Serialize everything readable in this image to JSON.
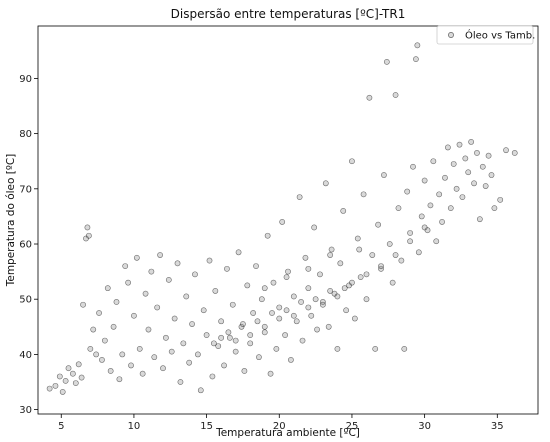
{
  "chart_data": {
    "type": "scatter",
    "title": "Dispersão entre temperaturas [ºC]-TR1",
    "xlabel": "Temperatura ambiente [ºC]",
    "ylabel": "Temperatura do óleo [ºC]",
    "xlim": [
      3.4,
      37.8
    ],
    "ylim": [
      29.2,
      99.5
    ],
    "xticks": [
      5,
      10,
      15,
      20,
      25,
      30,
      35
    ],
    "yticks": [
      30,
      40,
      50,
      60,
      70,
      80,
      90
    ],
    "grid": false,
    "legend": {
      "position": "top-right",
      "entries": [
        "Óleo vs Tamb."
      ]
    },
    "marker": {
      "shape": "circle",
      "fill": "#808080",
      "edge": "#000000",
      "alpha": 0.3
    },
    "series": [
      {
        "points": [
          [
            4.2,
            33.8
          ],
          [
            4.6,
            34.3
          ],
          [
            4.9,
            36.0
          ],
          [
            5.1,
            33.2
          ],
          [
            5.3,
            35.2
          ],
          [
            5.5,
            37.5
          ],
          [
            5.8,
            36.5
          ],
          [
            6.0,
            34.8
          ],
          [
            6.2,
            38.2
          ],
          [
            6.4,
            35.8
          ],
          [
            6.5,
            49.0
          ],
          [
            6.7,
            61.0
          ],
          [
            6.8,
            63.0
          ],
          [
            6.9,
            61.5
          ],
          [
            7.0,
            41.0
          ],
          [
            7.2,
            44.5
          ],
          [
            7.4,
            40.0
          ],
          [
            7.6,
            47.5
          ],
          [
            7.8,
            39.0
          ],
          [
            8.0,
            42.5
          ],
          [
            8.2,
            52.0
          ],
          [
            8.4,
            37.0
          ],
          [
            8.6,
            45.0
          ],
          [
            8.8,
            49.5
          ],
          [
            9.0,
            35.5
          ],
          [
            9.2,
            40.0
          ],
          [
            9.4,
            56.0
          ],
          [
            9.6,
            53.0
          ],
          [
            9.8,
            38.0
          ],
          [
            10.0,
            47.0
          ],
          [
            10.2,
            57.5
          ],
          [
            10.4,
            41.0
          ],
          [
            10.6,
            36.5
          ],
          [
            10.8,
            51.0
          ],
          [
            11.0,
            44.5
          ],
          [
            11.2,
            55.0
          ],
          [
            11.4,
            39.5
          ],
          [
            11.6,
            48.5
          ],
          [
            11.8,
            58.0
          ],
          [
            12.0,
            37.5
          ],
          [
            12.2,
            43.0
          ],
          [
            12.4,
            53.5
          ],
          [
            12.6,
            40.5
          ],
          [
            12.8,
            46.5
          ],
          [
            13.0,
            56.5
          ],
          [
            13.2,
            35.0
          ],
          [
            13.4,
            42.0
          ],
          [
            13.6,
            50.5
          ],
          [
            13.8,
            38.5
          ],
          [
            14.0,
            45.5
          ],
          [
            14.2,
            54.5
          ],
          [
            14.4,
            40.0
          ],
          [
            14.6,
            33.5
          ],
          [
            14.8,
            48.0
          ],
          [
            15.0,
            43.5
          ],
          [
            15.2,
            57.0
          ],
          [
            15.4,
            36.0
          ],
          [
            15.6,
            51.5
          ],
          [
            15.8,
            41.5
          ],
          [
            16.0,
            46.0
          ],
          [
            16.2,
            38.0
          ],
          [
            16.4,
            55.5
          ],
          [
            16.6,
            43.0
          ],
          [
            16.8,
            49.0
          ],
          [
            17.0,
            40.5
          ],
          [
            17.2,
            58.5
          ],
          [
            17.4,
            45.0
          ],
          [
            17.6,
            37.0
          ],
          [
            17.8,
            52.5
          ],
          [
            18.0,
            42.0
          ],
          [
            18.2,
            47.5
          ],
          [
            18.4,
            56.0
          ],
          [
            18.6,
            39.5
          ],
          [
            18.8,
            50.0
          ],
          [
            19.0,
            44.0
          ],
          [
            19.2,
            61.5
          ],
          [
            19.4,
            36.5
          ],
          [
            19.6,
            53.0
          ],
          [
            19.8,
            41.0
          ],
          [
            20.0,
            48.5
          ],
          [
            20.2,
            64.0
          ],
          [
            20.4,
            43.5
          ],
          [
            20.6,
            55.0
          ],
          [
            20.8,
            39.0
          ],
          [
            21.0,
            50.5
          ],
          [
            21.2,
            46.0
          ],
          [
            21.4,
            68.5
          ],
          [
            21.6,
            42.5
          ],
          [
            21.8,
            57.5
          ],
          [
            22.0,
            52.0
          ],
          [
            22.2,
            47.0
          ],
          [
            22.4,
            63.0
          ],
          [
            22.6,
            44.5
          ],
          [
            22.8,
            54.5
          ],
          [
            23.0,
            49.5
          ],
          [
            23.2,
            71.0
          ],
          [
            23.4,
            45.0
          ],
          [
            23.6,
            59.0
          ],
          [
            23.8,
            51.0
          ],
          [
            24.0,
            41.0
          ],
          [
            24.2,
            56.5
          ],
          [
            24.4,
            66.0
          ],
          [
            24.6,
            48.0
          ],
          [
            24.8,
            52.5
          ],
          [
            25.0,
            75.0
          ],
          [
            25.2,
            46.5
          ],
          [
            25.4,
            61.0
          ],
          [
            25.6,
            54.0
          ],
          [
            25.8,
            69.0
          ],
          [
            26.0,
            50.0
          ],
          [
            26.2,
            86.5
          ],
          [
            26.4,
            58.0
          ],
          [
            26.6,
            41.0
          ],
          [
            26.8,
            63.5
          ],
          [
            27.0,
            55.5
          ],
          [
            27.2,
            72.5
          ],
          [
            27.4,
            93.0
          ],
          [
            27.6,
            60.0
          ],
          [
            27.8,
            53.0
          ],
          [
            28.0,
            87.0
          ],
          [
            28.2,
            66.5
          ],
          [
            28.4,
            57.0
          ],
          [
            28.6,
            41.0
          ],
          [
            28.8,
            69.5
          ],
          [
            29.0,
            62.0
          ],
          [
            29.2,
            74.0
          ],
          [
            29.4,
            93.5
          ],
          [
            29.5,
            96.0
          ],
          [
            29.6,
            58.5
          ],
          [
            29.8,
            65.0
          ],
          [
            30.0,
            71.5
          ],
          [
            30.2,
            62.5
          ],
          [
            30.4,
            67.0
          ],
          [
            30.6,
            75.0
          ],
          [
            30.8,
            60.5
          ],
          [
            31.0,
            69.0
          ],
          [
            31.2,
            64.0
          ],
          [
            31.4,
            72.0
          ],
          [
            31.6,
            77.5
          ],
          [
            31.8,
            66.5
          ],
          [
            32.0,
            74.5
          ],
          [
            32.2,
            70.0
          ],
          [
            32.4,
            78.0
          ],
          [
            32.6,
            68.5
          ],
          [
            32.8,
            75.5
          ],
          [
            33.0,
            73.0
          ],
          [
            33.2,
            78.5
          ],
          [
            33.4,
            71.0
          ],
          [
            33.6,
            76.5
          ],
          [
            33.8,
            64.5
          ],
          [
            34.0,
            74.0
          ],
          [
            34.2,
            70.5
          ],
          [
            34.4,
            76.0
          ],
          [
            34.6,
            72.5
          ],
          [
            34.8,
            66.5
          ],
          [
            35.2,
            68.0
          ],
          [
            35.6,
            77.0
          ],
          [
            36.2,
            76.5
          ],
          [
            16.5,
            44.0
          ],
          [
            17.5,
            45.5
          ],
          [
            18.5,
            46.0
          ],
          [
            19.5,
            47.5
          ],
          [
            20.5,
            48.0
          ],
          [
            21.5,
            49.5
          ],
          [
            22.5,
            50.0
          ],
          [
            23.5,
            51.5
          ],
          [
            24.5,
            52.0
          ],
          [
            17.0,
            42.5
          ],
          [
            18.0,
            43.5
          ],
          [
            19.0,
            45.0
          ],
          [
            20.0,
            46.5
          ],
          [
            21.0,
            47.0
          ],
          [
            22.0,
            48.5
          ],
          [
            23.0,
            49.0
          ],
          [
            24.0,
            50.5
          ],
          [
            25.0,
            53.0
          ],
          [
            26.0,
            54.5
          ],
          [
            27.0,
            56.0
          ],
          [
            28.0,
            58.0
          ],
          [
            29.0,
            60.5
          ],
          [
            30.0,
            63.0
          ],
          [
            15.5,
            42.0
          ],
          [
            16.0,
            43.0
          ],
          [
            19.0,
            52.0
          ],
          [
            20.5,
            54.0
          ],
          [
            22.0,
            55.5
          ],
          [
            23.5,
            58.0
          ],
          [
            25.5,
            59.0
          ]
        ]
      }
    ]
  }
}
